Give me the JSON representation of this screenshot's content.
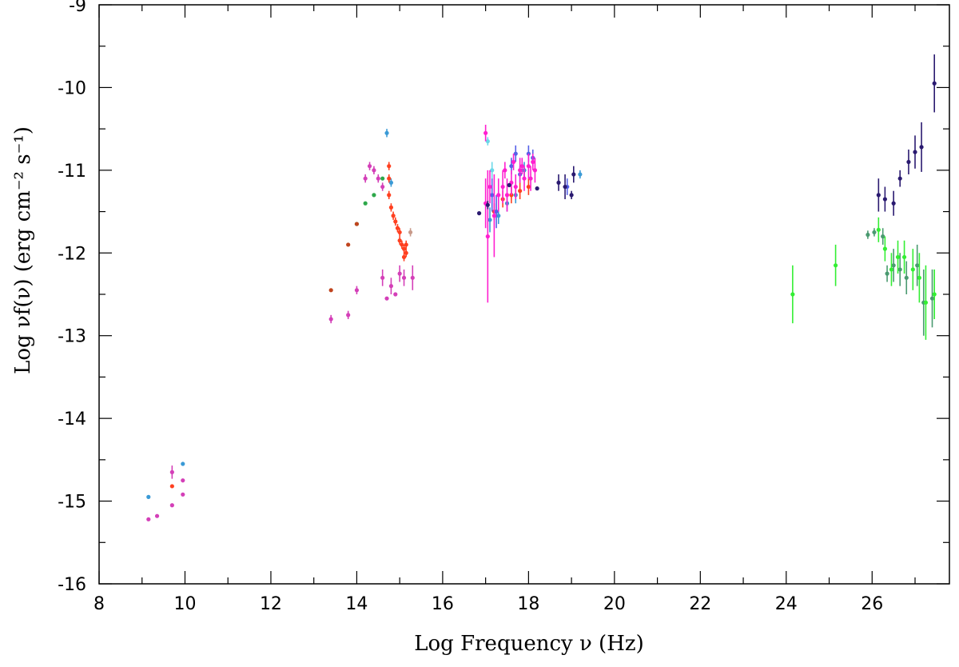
{
  "chart_data": {
    "type": "scatter",
    "xlabel": "Log Frequency ν (Hz)",
    "ylabel": "Log νf(ν) (erg cm⁻² s⁻¹)",
    "xlim": [
      8,
      27.8
    ],
    "ylim": [
      -16,
      -9
    ],
    "x_ticks": [
      8,
      10,
      12,
      14,
      16,
      18,
      20,
      22,
      24,
      26
    ],
    "y_ticks": [
      -16,
      -15,
      -14,
      -13,
      -12,
      -11,
      -10,
      -9
    ],
    "grid": false,
    "legend": "none",
    "series": [
      {
        "color": "#3a9ad6",
        "points": [
          [
            9.15,
            -14.95,
            0
          ],
          [
            9.95,
            -14.55,
            0
          ],
          [
            14.7,
            -10.55,
            0.05
          ],
          [
            14.8,
            -11.15,
            0.05
          ],
          [
            17.1,
            -11.6,
            0.15
          ],
          [
            17.3,
            -11.55,
            0.1
          ],
          [
            17.5,
            -11.4,
            0.1
          ],
          [
            17.7,
            -11.3,
            0.1
          ],
          [
            17.9,
            -11.0,
            0.1
          ],
          [
            19.2,
            -11.05,
            0.05
          ]
        ]
      },
      {
        "color": "#d43fb8",
        "points": [
          [
            9.15,
            -15.22,
            0
          ],
          [
            9.35,
            -15.18,
            0
          ],
          [
            9.7,
            -15.05,
            0
          ],
          [
            9.7,
            -14.65,
            0.08
          ],
          [
            9.95,
            -14.75,
            0
          ],
          [
            9.95,
            -14.92,
            0
          ],
          [
            13.4,
            -12.8,
            0.05
          ],
          [
            13.8,
            -12.75,
            0.05
          ],
          [
            14.0,
            -12.45,
            0.05
          ],
          [
            14.2,
            -11.1,
            0.05
          ],
          [
            14.3,
            -10.95,
            0.05
          ],
          [
            14.4,
            -11.0,
            0.05
          ],
          [
            14.5,
            -11.1,
            0.05
          ],
          [
            14.6,
            -11.2,
            0.05
          ],
          [
            14.6,
            -12.3,
            0.1
          ],
          [
            14.7,
            -12.55,
            0
          ],
          [
            14.8,
            -12.4,
            0.1
          ],
          [
            14.9,
            -12.5,
            0
          ],
          [
            15.0,
            -12.25,
            0.1
          ],
          [
            15.1,
            -12.3,
            0.1
          ],
          [
            15.3,
            -12.3,
            0.15
          ]
        ]
      },
      {
        "color": "#2ea84a",
        "points": [
          [
            14.0,
            -11.65,
            0
          ],
          [
            14.2,
            -11.4,
            0
          ],
          [
            14.4,
            -11.3,
            0
          ],
          [
            14.6,
            -11.1,
            0
          ]
        ]
      },
      {
        "color": "#c0441e",
        "points": [
          [
            13.4,
            -12.45,
            0
          ],
          [
            13.8,
            -11.9,
            0
          ],
          [
            14.0,
            -11.65,
            0
          ]
        ]
      },
      {
        "color": "#ff4020",
        "points": [
          [
            9.7,
            -14.82,
            0
          ],
          [
            14.75,
            -10.95,
            0.05
          ],
          [
            14.75,
            -11.1,
            0.05
          ],
          [
            14.75,
            -11.3,
            0.05
          ],
          [
            14.8,
            -11.45,
            0.05
          ],
          [
            14.85,
            -11.55,
            0.05
          ],
          [
            14.9,
            -11.62,
            0.05
          ],
          [
            14.95,
            -11.7,
            0.05
          ],
          [
            15.0,
            -11.75,
            0.05
          ],
          [
            15.0,
            -11.85,
            0.05
          ],
          [
            15.05,
            -11.9,
            0.05
          ],
          [
            15.1,
            -11.95,
            0.05
          ],
          [
            15.1,
            -12.05,
            0.05
          ],
          [
            15.15,
            -11.9,
            0.05
          ],
          [
            15.15,
            -12.0,
            0.05
          ],
          [
            17.2,
            -11.5,
            0.1
          ],
          [
            17.4,
            -11.35,
            0.1
          ],
          [
            17.6,
            -11.3,
            0.1
          ],
          [
            17.8,
            -11.25,
            0.1
          ],
          [
            18.0,
            -11.2,
            0.1
          ]
        ]
      },
      {
        "color": "#c89a8a",
        "points": [
          [
            15.25,
            -11.75,
            0.05
          ]
        ]
      },
      {
        "color": "#6bd8e8",
        "points": [
          [
            17.05,
            -10.65,
            0.05
          ],
          [
            17.15,
            -11.0,
            0.1
          ]
        ]
      },
      {
        "color": "#5560e8",
        "points": [
          [
            17.15,
            -11.3,
            0.2
          ],
          [
            17.25,
            -11.5,
            0.2
          ],
          [
            17.6,
            -10.95,
            0.1
          ],
          [
            17.7,
            -10.8,
            0.1
          ],
          [
            17.8,
            -11.05,
            0.1
          ],
          [
            18.0,
            -10.8,
            0.1
          ],
          [
            18.1,
            -10.85,
            0.1
          ],
          [
            18.9,
            -11.2,
            0.1
          ]
        ]
      },
      {
        "color": "#ff1fd0",
        "points": [
          [
            17.0,
            -11.4,
            0.3
          ],
          [
            17.0,
            -10.55,
            0.1
          ],
          [
            17.05,
            -11.8,
            0.8
          ],
          [
            17.1,
            -11.2,
            0.2
          ],
          [
            17.2,
            -11.55,
            0.5
          ],
          [
            17.3,
            -11.3,
            0.2
          ],
          [
            17.4,
            -11.2,
            0.2
          ],
          [
            17.5,
            -11.3,
            0.2
          ],
          [
            17.6,
            -11.15,
            0.15
          ],
          [
            17.7,
            -11.2,
            0.15
          ],
          [
            17.8,
            -11.0,
            0.15
          ],
          [
            17.9,
            -11.1,
            0.15
          ],
          [
            18.0,
            -10.95,
            0.15
          ],
          [
            18.05,
            -11.1,
            0.15
          ],
          [
            18.15,
            -11.0,
            0.15
          ],
          [
            17.45,
            -11.0,
            0.1
          ],
          [
            17.65,
            -10.9,
            0.1
          ],
          [
            17.85,
            -10.95,
            0.1
          ],
          [
            18.1,
            -10.9,
            0.1
          ]
        ]
      },
      {
        "color": "#2a1a70",
        "points": [
          [
            16.85,
            -11.52,
            0
          ],
          [
            17.05,
            -11.42,
            0.05
          ],
          [
            17.55,
            -11.18,
            0
          ],
          [
            18.2,
            -11.22,
            0
          ],
          [
            18.7,
            -11.15,
            0.1
          ],
          [
            18.85,
            -11.2,
            0.15
          ],
          [
            19.0,
            -11.3,
            0.05
          ],
          [
            19.05,
            -11.05,
            0.1
          ],
          [
            26.15,
            -11.3,
            0.2
          ],
          [
            26.3,
            -11.35,
            0.15
          ],
          [
            26.5,
            -11.4,
            0.15
          ],
          [
            26.65,
            -11.1,
            0.1
          ],
          [
            26.85,
            -10.9,
            0.15
          ],
          [
            27.0,
            -10.78,
            0.2
          ],
          [
            27.15,
            -10.72,
            0.3
          ],
          [
            27.45,
            -9.95,
            0.35
          ]
        ]
      },
      {
        "color": "#4a9a70",
        "points": [
          [
            25.9,
            -11.78,
            0.05
          ],
          [
            26.05,
            -11.75,
            0.05
          ],
          [
            26.25,
            -11.8,
            0.1
          ],
          [
            26.35,
            -12.25,
            0.1
          ],
          [
            26.5,
            -12.15,
            0.2
          ],
          [
            26.65,
            -12.2,
            0.2
          ],
          [
            26.8,
            -12.3,
            0.2
          ],
          [
            27.05,
            -12.15,
            0.25
          ],
          [
            27.2,
            -12.6,
            0.4
          ],
          [
            27.4,
            -12.55,
            0.35
          ]
        ]
      },
      {
        "color": "#33ee33",
        "points": [
          [
            24.15,
            -12.5,
            0.35
          ],
          [
            25.15,
            -12.15,
            0.25
          ],
          [
            26.15,
            -11.72,
            0.15
          ],
          [
            26.3,
            -11.95,
            0.15
          ],
          [
            26.45,
            -12.2,
            0.2
          ],
          [
            26.6,
            -12.05,
            0.2
          ],
          [
            26.75,
            -12.05,
            0.2
          ],
          [
            26.95,
            -12.2,
            0.25
          ],
          [
            27.1,
            -12.3,
            0.3
          ],
          [
            27.25,
            -12.6,
            0.45
          ],
          [
            27.45,
            -12.5,
            0.3
          ]
        ]
      }
    ]
  }
}
